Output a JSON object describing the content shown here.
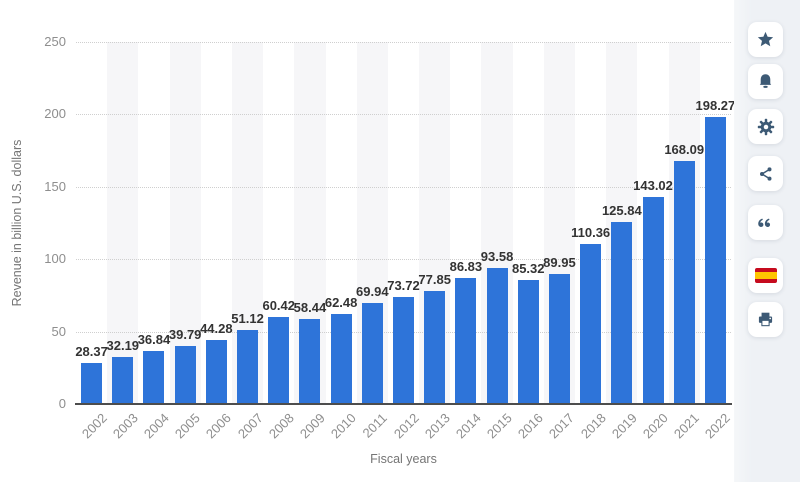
{
  "chart_data": {
    "type": "bar",
    "title": "",
    "xlabel": "Fiscal years",
    "ylabel": "Revenue in billion U.S. dollars",
    "categories": [
      "2002",
      "2003",
      "2004",
      "2005",
      "2006",
      "2007",
      "2008",
      "2009",
      "2010",
      "2011",
      "2012",
      "2013",
      "2014",
      "2015",
      "2016",
      "2017",
      "2018",
      "2019",
      "2020",
      "2021",
      "2022"
    ],
    "values": [
      28.37,
      32.19,
      36.84,
      39.79,
      44.28,
      51.12,
      60.42,
      58.44,
      62.48,
      69.94,
      73.72,
      77.85,
      86.83,
      93.58,
      85.32,
      89.95,
      110.36,
      125.84,
      143.02,
      168.09,
      198.27
    ],
    "ylim": [
      0,
      250
    ],
    "yticks": [
      0,
      50,
      100,
      150,
      200,
      250
    ],
    "grid": "horizontal-dotted",
    "legend": "none",
    "value_labels": true,
    "bar_color": "#2e74d9"
  },
  "sidebar": {
    "buttons": [
      {
        "name": "favorite-button",
        "icon": "star-icon"
      },
      {
        "name": "notifications-button",
        "icon": "bell-icon"
      },
      {
        "name": "settings-button",
        "icon": "gear-icon"
      },
      {
        "name": "share-button",
        "icon": "share-icon"
      },
      {
        "name": "citation-button",
        "icon": "quote-icon"
      },
      {
        "name": "language-button",
        "icon": "spain-flag-icon"
      },
      {
        "name": "print-button",
        "icon": "printer-icon"
      }
    ]
  },
  "colors": {
    "bar": "#2e74d9",
    "icon": "#3d5a75",
    "sidebar_bg": "#eef1f5",
    "column_band": "#f6f6f8",
    "axis_line": "#4d4d4d",
    "tick_text": "#8e8e8e",
    "axis_title_text": "#757575",
    "value_text": "#333333",
    "flag_red": "#c60b1e",
    "flag_yellow": "#ffc400"
  }
}
